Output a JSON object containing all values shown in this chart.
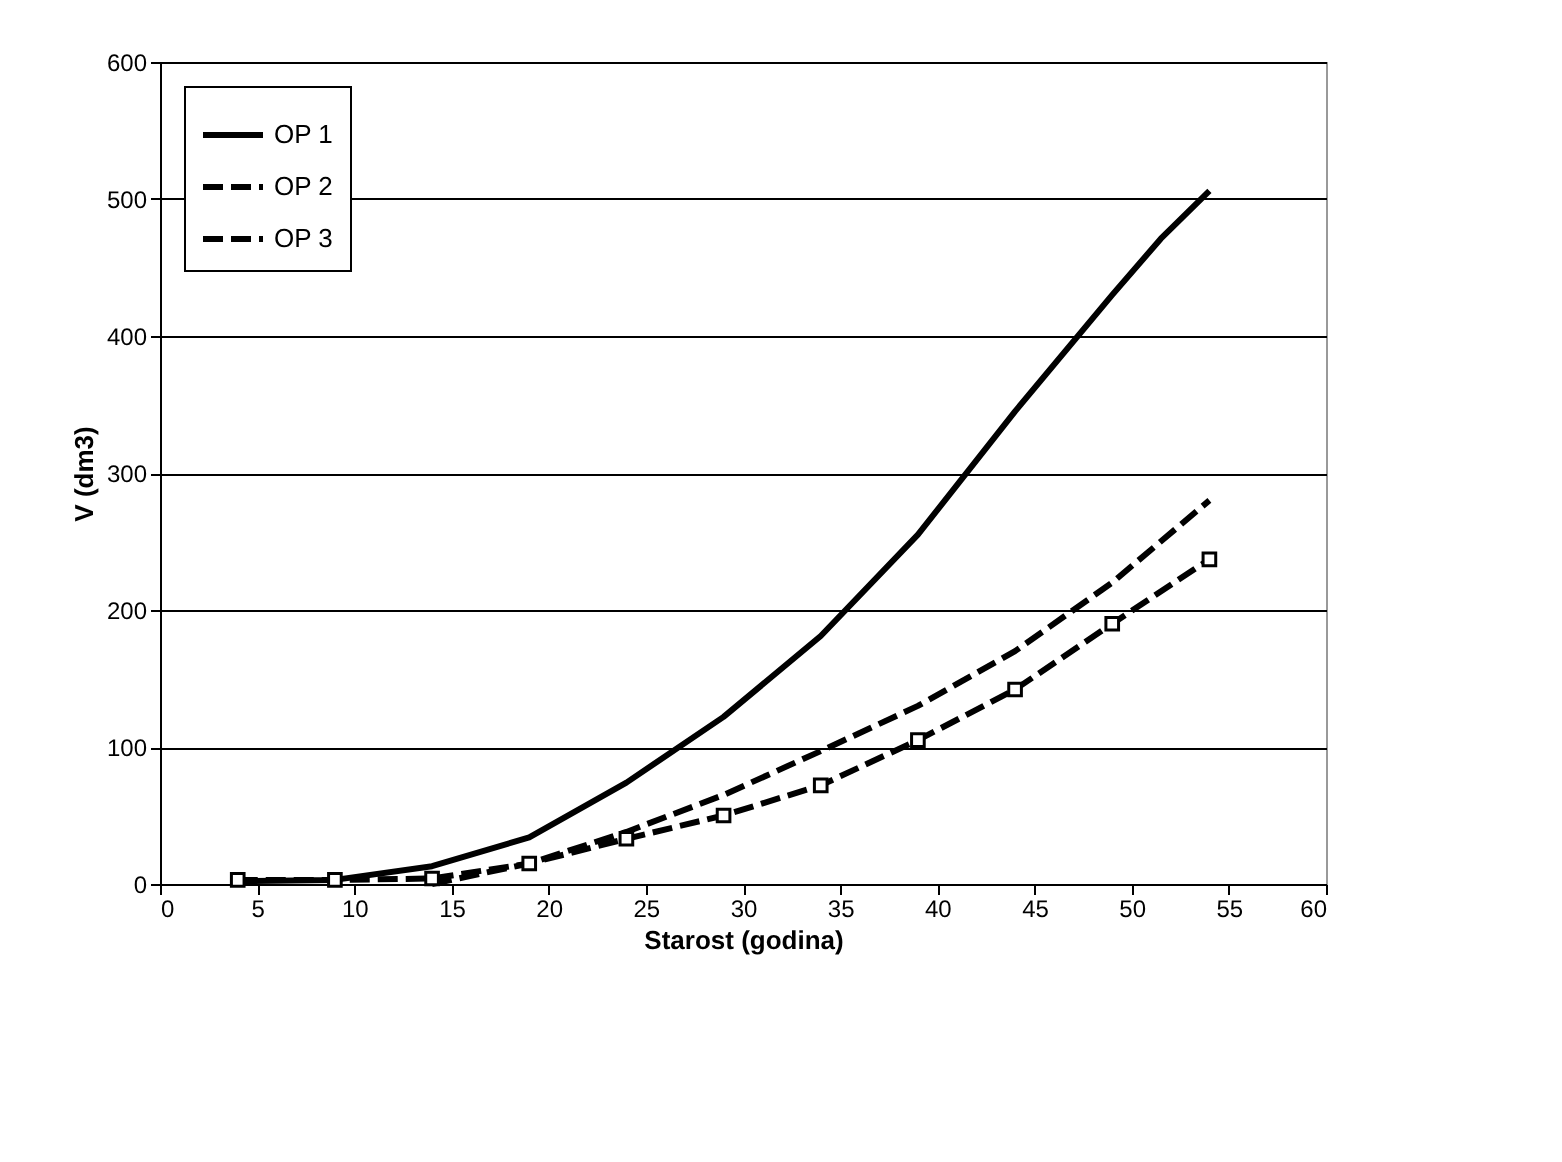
{
  "chart_data": {
    "type": "line",
    "xlabel": "Starost (godina)",
    "ylabel": "V (dm3)",
    "xlim": [
      0,
      60
    ],
    "xticks": [
      0,
      5,
      10,
      15,
      20,
      25,
      30,
      35,
      40,
      45,
      50,
      55,
      60
    ],
    "ylim": [
      0,
      600
    ],
    "yticks": [
      0,
      100,
      200,
      300,
      400,
      500,
      600
    ],
    "grid": "y",
    "legend": "top left",
    "series": [
      {
        "name": "OP 1",
        "color": "#000000",
        "line_style": "solid",
        "marker": "none",
        "x": [
          4,
          9,
          14,
          19,
          24,
          29,
          34,
          39,
          44,
          49,
          51.5,
          54
        ],
        "values": [
          2,
          3,
          13,
          34,
          74,
          122,
          181,
          255,
          345,
          430,
          471,
          506
        ]
      },
      {
        "name": "OP 2",
        "color": "#000000",
        "line_style": "dashed",
        "marker": "square",
        "x": [
          4,
          9,
          14,
          19,
          24,
          29,
          34,
          39,
          44,
          49,
          54
        ],
        "values": [
          3,
          3,
          4,
          15,
          33,
          50,
          72,
          105,
          142,
          190,
          237
        ]
      },
      {
        "name": "OP 3",
        "color": "#000000",
        "line_style": "dashed",
        "marker": "none",
        "x": [
          14,
          19,
          24,
          29,
          34,
          39,
          44,
          49,
          54
        ],
        "values": [
          0,
          15,
          38,
          65,
          97,
          130,
          170,
          220,
          280
        ]
      }
    ]
  }
}
